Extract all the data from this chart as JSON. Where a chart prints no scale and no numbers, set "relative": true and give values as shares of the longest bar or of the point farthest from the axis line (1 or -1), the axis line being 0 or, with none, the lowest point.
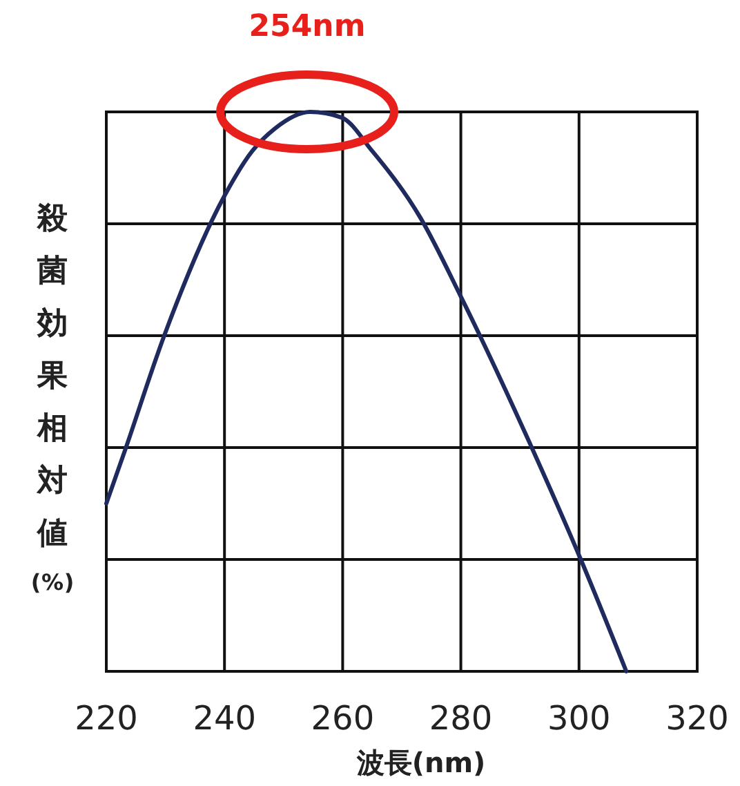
{
  "chart_data": {
    "type": "line",
    "relative": true,
    "xlabel": "波長(nm)",
    "ylabel": "殺菌効果相対値(%)",
    "xlim": [
      220,
      320
    ],
    "xticks": [
      220,
      240,
      260,
      280,
      300,
      320
    ],
    "grid": true,
    "line_style": "solid",
    "marker": "none",
    "annotations": [
      {
        "text": "254nm",
        "x": 254,
        "y": 1
      }
    ],
    "series": [
      {
        "color": "#1f2a5e",
        "x": [
          220,
          223,
          229.8,
          240,
          244.7,
          248.5,
          254.5,
          259.8,
          265,
          273.2,
          280,
          292,
          300.3,
          308
        ],
        "values": [
          0.3,
          0.39,
          0.6,
          0.85,
          0.93,
          0.97,
          1.0,
          0.99,
          0.93,
          0.81,
          0.67,
          0.4,
          0.2,
          0.0
        ]
      }
    ]
  }
}
